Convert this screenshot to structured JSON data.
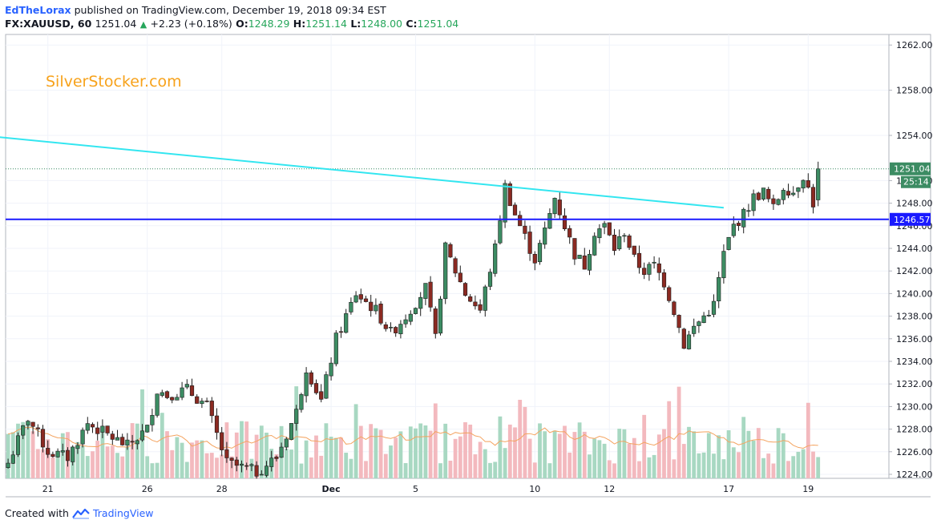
{
  "header": {
    "author": "EdTheLorax",
    "published": "published on TradingView.com, December 19, 2018 09:34 EST",
    "symbol": "FX:XAUUSD, 60",
    "last": "1251.04",
    "change": "+2.23 (+0.18%)",
    "o_label": "O:",
    "o_value": "1248.29",
    "h_label": "H:",
    "h_value": "1251.14",
    "l_label": "L:",
    "l_value": "1248.00",
    "c_label": "C:",
    "c_value": "1251.04"
  },
  "watermark": "SilverStocker.com",
  "footer": {
    "created": "Created with",
    "brand": "TradingView"
  },
  "colors": {
    "up": "#3c8c63",
    "down": "#8b2a22",
    "vol_up": "#a8d8c2",
    "vol_down": "#f3b9be",
    "ma": "#f4a460",
    "trendline": "#33e6f0",
    "support": "#1a1aff",
    "watermark": "#f7a21b"
  },
  "chart_data": {
    "type": "candlestick",
    "symbol": "FX:XAUUSD",
    "interval": "60",
    "ylim": [
      1223.5,
      1263.5
    ],
    "y_ticks": [
      "1262.00",
      "1258.00",
      "1254.00",
      "1250.00",
      "1248.00",
      "1246.00",
      "1244.00",
      "1242.00",
      "1240.00",
      "1238.00",
      "1236.00",
      "1234.00",
      "1232.00",
      "1230.00",
      "1228.00",
      "1226.00",
      "1224.00"
    ],
    "x_ticks": [
      "21",
      "26",
      "28",
      "Dec",
      "5",
      "10",
      "12",
      "17",
      "19"
    ],
    "last_price_label": "1251.04",
    "countdown_label": "25:14",
    "support_label": "1246.57",
    "support_level": 1246.57,
    "trendline": {
      "from": [
        -3,
        1253.9
      ],
      "to": [
        144,
        1247.6
      ]
    },
    "close_path": [
      [
        0,
        1225.0
      ],
      [
        4,
        1229.0
      ],
      [
        8,
        1226.0
      ],
      [
        12,
        1225.5
      ],
      [
        16,
        1228.5
      ],
      [
        20,
        1227.5
      ],
      [
        24,
        1226.5
      ],
      [
        28,
        1228.0
      ],
      [
        30,
        1231.5
      ],
      [
        32,
        1231.0
      ],
      [
        36,
        1231.5
      ],
      [
        40,
        1230.0
      ],
      [
        44,
        1225.0
      ],
      [
        50,
        1224.2
      ],
      [
        54,
        1225.5
      ],
      [
        58,
        1229.5
      ],
      [
        60,
        1233.5
      ],
      [
        63,
        1230.5
      ],
      [
        66,
        1236.0
      ],
      [
        70,
        1240.0
      ],
      [
        74,
        1238.5
      ],
      [
        77,
        1236.5
      ],
      [
        80,
        1238.0
      ],
      [
        84,
        1240.5
      ],
      [
        86,
        1236.0
      ],
      [
        88,
        1244.0
      ],
      [
        92,
        1240.0
      ],
      [
        95,
        1238.5
      ],
      [
        98,
        1244.0
      ],
      [
        100,
        1249.5
      ],
      [
        102,
        1247.0
      ],
      [
        104,
        1245.0
      ],
      [
        106,
        1243.0
      ],
      [
        108,
        1245.5
      ],
      [
        110,
        1248.5
      ],
      [
        112,
        1246.0
      ],
      [
        114,
        1243.5
      ],
      [
        116,
        1242.5
      ],
      [
        118,
        1245.5
      ],
      [
        120,
        1246.0
      ],
      [
        122,
        1244.0
      ],
      [
        124,
        1245.5
      ],
      [
        126,
        1243.0
      ],
      [
        128,
        1242.0
      ],
      [
        130,
        1242.5
      ],
      [
        132,
        1241.0
      ],
      [
        134,
        1238.5
      ],
      [
        136,
        1235.5
      ],
      [
        138,
        1237.0
      ],
      [
        140,
        1238.0
      ],
      [
        142,
        1239.0
      ],
      [
        144,
        1243.5
      ],
      [
        146,
        1246.0
      ],
      [
        148,
        1247.0
      ],
      [
        150,
        1248.5
      ],
      [
        152,
        1249.0
      ],
      [
        154,
        1247.5
      ],
      [
        156,
        1249.5
      ],
      [
        158,
        1249.0
      ],
      [
        160,
        1250.5
      ],
      [
        162,
        1248.0
      ],
      [
        163,
        1251.04
      ]
    ]
  }
}
